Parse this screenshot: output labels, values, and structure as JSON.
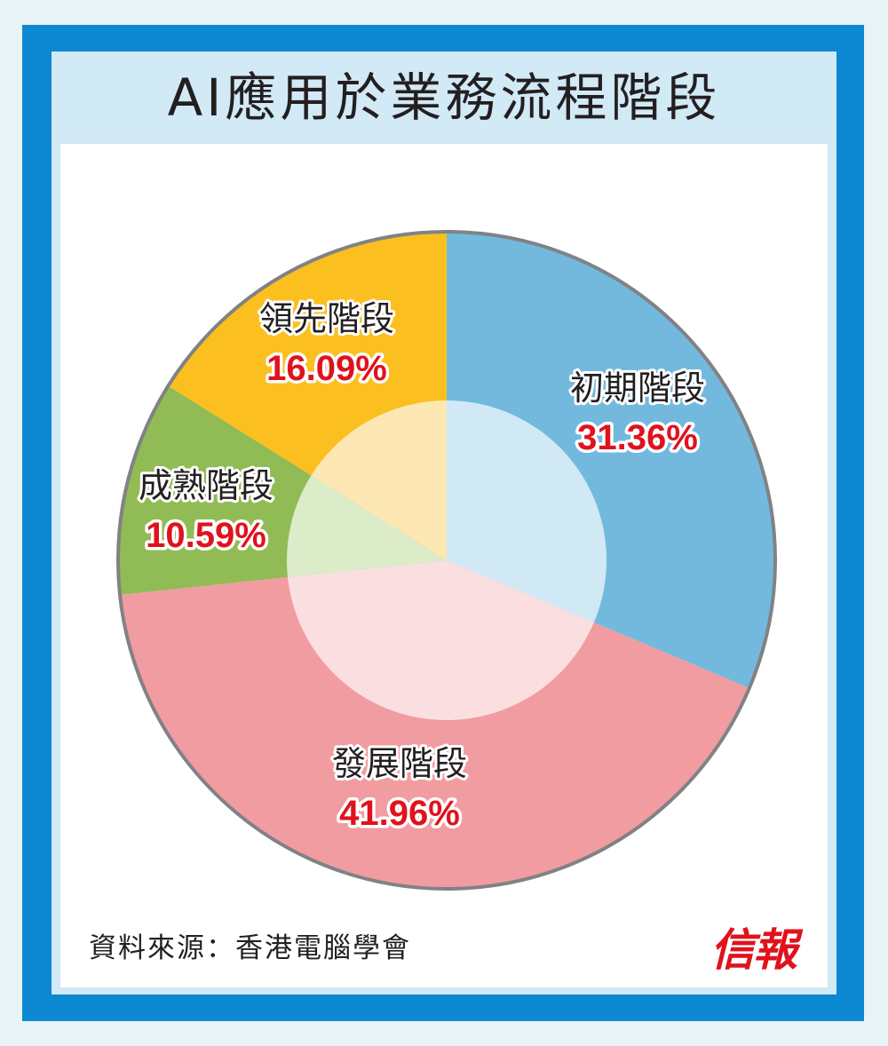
{
  "title": "AI應用於業務流程階段",
  "source": "資料來源：香港電腦學會",
  "logo": "信報",
  "colors": {
    "frame": "#0d88d3",
    "title_bg": "#d2e9f6",
    "value_text": "#e0121d",
    "outline": "#808285"
  },
  "chart_data": {
    "type": "pie",
    "title": "AI應用於業務流程階段",
    "start": "12 o'clock",
    "direction": "clockwise",
    "slices": [
      {
        "label": "初期階段",
        "value": 31.36,
        "value_label": "31.36%",
        "color": "#72b9dd",
        "inner_color": "#d1e9f5"
      },
      {
        "label": "發展階段",
        "value": 41.96,
        "value_label": "41.96%",
        "color": "#f19ca1",
        "inner_color": "#fbdfe0"
      },
      {
        "label": "成熟階段",
        "value": 10.59,
        "value_label": "10.59%",
        "color": "#91bb54",
        "inner_color": "#dcebc8"
      },
      {
        "label": "領先階段",
        "value": 16.09,
        "value_label": "16.09%",
        "color": "#fbbf1f",
        "inner_color": "#fde8b3"
      }
    ]
  }
}
